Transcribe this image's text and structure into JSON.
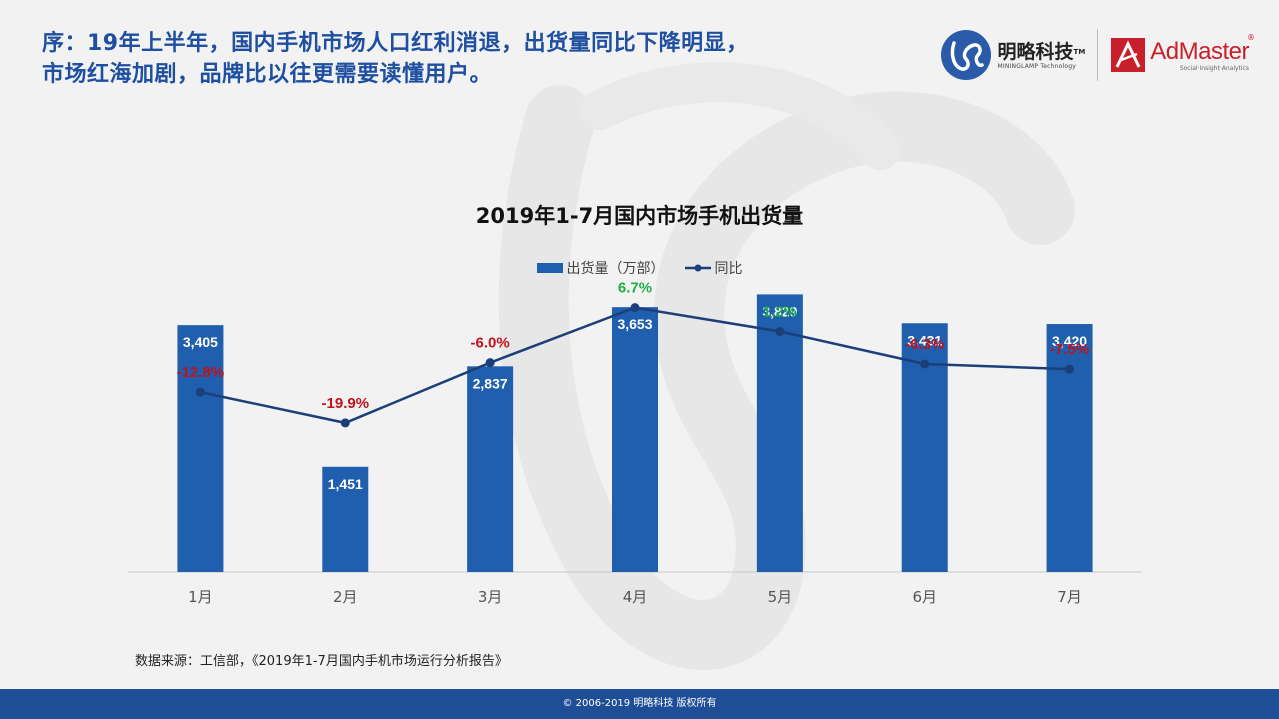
{
  "header": {
    "title_line1": "序：19年上半年，国内手机市场人口红利消退，出货量同比下降明显，",
    "title_line2": "市场红海加剧，品牌比以往更需要读懂用户。"
  },
  "logos": {
    "mininglamp_cn": "明略科技",
    "mininglamp_tm": "TM",
    "mininglamp_en": "MININGLAMP Technology",
    "admaster_name": "AdMaster",
    "admaster_reg": "®",
    "admaster_tagline": "Social·Insight·Analytics"
  },
  "colors": {
    "bar": "#1f5fad",
    "line": "#1c3f7a",
    "negative": "#c0131c",
    "positive": "#1fae4a",
    "headline": "#1e4fa0",
    "footer": "#1f4e96"
  },
  "chart_data": {
    "type": "bar",
    "title": "2019年1-7月国内市场手机出货量",
    "categories": [
      "1月",
      "2月",
      "3月",
      "4月",
      "5月",
      "6月",
      "7月"
    ],
    "series": [
      {
        "name": "出货量（万部）",
        "type": "bar",
        "values": [
          3405,
          1451,
          2837,
          3653,
          3829,
          3431,
          3420
        ],
        "labels": [
          "3,405",
          "1,451",
          "2,837",
          "3,653",
          "3,829",
          "3,431",
          "3,420"
        ]
      },
      {
        "name": "同比",
        "type": "line",
        "values": [
          -12.8,
          -19.9,
          -6.0,
          6.7,
          1.2,
          -6.3,
          -7.5
        ],
        "labels": [
          "-12.8%",
          "-19.9%",
          "-6.0%",
          "6.7%",
          "1.2%",
          "-6.3%",
          "-7.5%"
        ]
      }
    ],
    "ylim": [
      0,
      4000
    ],
    "y2lim": [
      -40,
      20
    ],
    "legend": "top",
    "grid": false
  },
  "source": "数据来源：工信部，《2019年1-7月国内手机市场运行分析报告》",
  "footer": "© 2006-2019 明略科技 版权所有"
}
